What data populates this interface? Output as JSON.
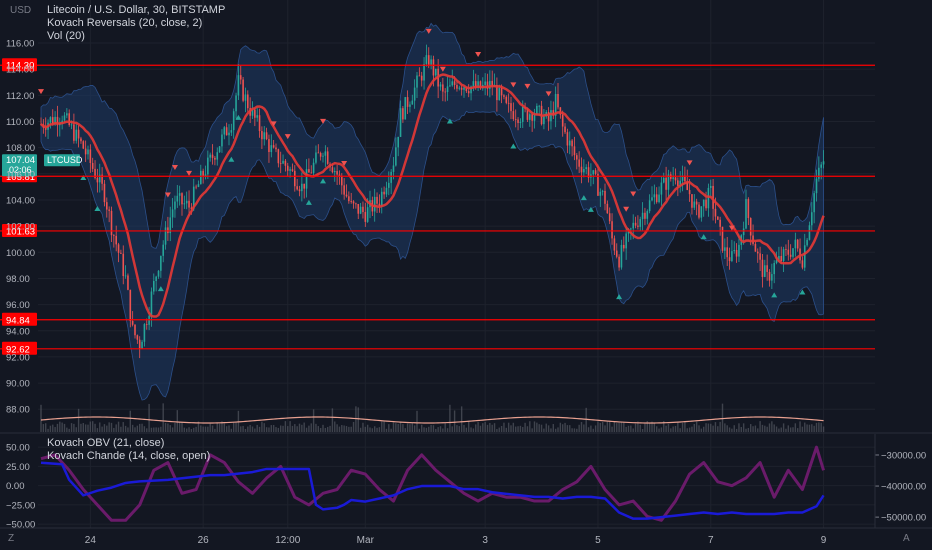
{
  "currency_label": "USD",
  "legend_main": {
    "line1": "Litecoin / U.S. Dollar, 30, BITSTAMP",
    "line2": "Kovach Reversals (20, close, 2)",
    "line3": "Vol (20)"
  },
  "legend_lower": {
    "line1": "Kovach OBV (21, close)",
    "line2": "Kovach Chande (14, close, open)"
  },
  "corner_left": "Z",
  "corner_right": "A",
  "colors": {
    "background": "#131722",
    "grid": "#1e222d",
    "hline": "#ff0000",
    "ma": "#e53935",
    "band": "#1e3a66",
    "up_candle": "#26a69a",
    "down_candle": "#ef5350",
    "obv": "#1a1ad6",
    "chande": "#6a1b6a",
    "volume_ma": "#e8a090",
    "price_badge": "#26a69a"
  },
  "chart_data": [
    {
      "type": "candlestick",
      "title": "Litecoin / U.S. Dollar, 30, BITSTAMP",
      "ylabel": "USD",
      "ylim": [
        86.8,
        117.6
      ],
      "y_ticks": [
        "116.00",
        "114.00",
        "112.00",
        "110.00",
        "108.00",
        "106.00",
        "104.00",
        "102.00",
        "100.00",
        "98.00",
        "96.00",
        "94.00",
        "92.00",
        "90.00",
        "88.00"
      ],
      "x_ticks": [
        "24",
        "26",
        "12:00",
        "Mar",
        "3",
        "5",
        "7",
        "9"
      ],
      "horizontal_lines": [
        {
          "value": 114.3,
          "label": "114.30"
        },
        {
          "value": 105.81,
          "label": "105.81"
        },
        {
          "value": 101.63,
          "label": "101.63"
        },
        {
          "value": 94.84,
          "label": "94.84"
        },
        {
          "value": 92.62,
          "label": "92.62"
        }
      ],
      "price_badges": {
        "price": "107.04",
        "countdown": "02:06",
        "symbol": "LTCUSD"
      },
      "close_path": [
        [
          0,
          109.8
        ],
        [
          3,
          110.5
        ],
        [
          6,
          108.0
        ],
        [
          9,
          104.5
        ],
        [
          10,
          102.0
        ],
        [
          12,
          98.0
        ],
        [
          13,
          94.0
        ],
        [
          14,
          93.0
        ],
        [
          15,
          95.0
        ],
        [
          17,
          100.0
        ],
        [
          19,
          104.0
        ],
        [
          21,
          103.5
        ],
        [
          23,
          106.0
        ],
        [
          25,
          108.0
        ],
        [
          27,
          110.0
        ],
        [
          28,
          113.0
        ],
        [
          30,
          110.5
        ],
        [
          33,
          107.5
        ],
        [
          35,
          106.5
        ],
        [
          37,
          105.0
        ],
        [
          39,
          107.0
        ],
        [
          40,
          108.0
        ],
        [
          42,
          106.0
        ],
        [
          44,
          103.5
        ],
        [
          46,
          103.0
        ],
        [
          48,
          104.0
        ],
        [
          50,
          107.0
        ],
        [
          51,
          110.5
        ],
        [
          53,
          112.5
        ],
        [
          55,
          114.8
        ],
        [
          57,
          112.0
        ],
        [
          59,
          113.0
        ],
        [
          62,
          112.5
        ],
        [
          64,
          112.8
        ],
        [
          66,
          111.0
        ],
        [
          68,
          110.5
        ],
        [
          70,
          110.8
        ],
        [
          72,
          110.0
        ],
        [
          73,
          111.5
        ],
        [
          74,
          109.5
        ],
        [
          76,
          107.0
        ],
        [
          78,
          106.0
        ],
        [
          80,
          104.0
        ],
        [
          81,
          101.0
        ],
        [
          82,
          99.5
        ],
        [
          84,
          102.0
        ],
        [
          86,
          103.5
        ],
        [
          88,
          105.0
        ],
        [
          90,
          106.0
        ],
        [
          92,
          104.5
        ],
        [
          93,
          103.0
        ],
        [
          95,
          104.5
        ],
        [
          96,
          102.0
        ],
        [
          97,
          100.0
        ],
        [
          98,
          99.5
        ],
        [
          99,
          100.5
        ],
        [
          100,
          103.5
        ],
        [
          101,
          101.0
        ],
        [
          102,
          99.0
        ],
        [
          103,
          98.0
        ],
        [
          104,
          99.0
        ],
        [
          105,
          99.5
        ],
        [
          106,
          100.0
        ],
        [
          107,
          100.5
        ],
        [
          108,
          99.5
        ],
        [
          109,
          102.5
        ],
        [
          110,
          105.5
        ],
        [
          111,
          107.0
        ]
      ],
      "volume_ma_label": "Vol (20)"
    },
    {
      "type": "line",
      "title": "",
      "series": [
        {
          "name": "Kovach OBV (21, close)",
          "axis": "right",
          "x": [
            0,
            3,
            4,
            6,
            8,
            10,
            12,
            14,
            18,
            20,
            24,
            26,
            28,
            30,
            32,
            34,
            36,
            38,
            39,
            40,
            42,
            43,
            44,
            46,
            48,
            50,
            52,
            54,
            56,
            58,
            60,
            62,
            64,
            66,
            68,
            70,
            72,
            74,
            76,
            78,
            80,
            82,
            84,
            86,
            88,
            90,
            92,
            94,
            96,
            98,
            100,
            102,
            104,
            106,
            108,
            110,
            111
          ],
          "values": [
            -32500,
            -33000,
            -38000,
            -43000,
            -41500,
            -40500,
            -39000,
            -38500,
            -38000,
            -37500,
            -36500,
            -36500,
            -36000,
            -35500,
            -34500,
            -34500,
            -34500,
            -34500,
            -46000,
            -47500,
            -47000,
            -46000,
            -44500,
            -45000,
            -44000,
            -43000,
            -41000,
            -40000,
            -40000,
            -40000,
            -41000,
            -41000,
            -42000,
            -42500,
            -43000,
            -43500,
            -43500,
            -44000,
            -43500,
            -43500,
            -44000,
            -48500,
            -50500,
            -50500,
            -50000,
            -49500,
            -49000,
            -48500,
            -49000,
            -48500,
            -49000,
            -49000,
            -49000,
            -48500,
            -48500,
            -46500,
            -43000
          ]
        },
        {
          "name": "Kovach Chande (14, close, open)",
          "axis": "left",
          "x": [
            0,
            2,
            4,
            6,
            8,
            10,
            12,
            14,
            16,
            18,
            20,
            22,
            24,
            26,
            28,
            30,
            32,
            34,
            36,
            38,
            40,
            42,
            44,
            46,
            48,
            50,
            52,
            54,
            56,
            58,
            60,
            62,
            64,
            66,
            68,
            70,
            72,
            74,
            76,
            78,
            80,
            82,
            84,
            86,
            88,
            90,
            92,
            94,
            96,
            98,
            100,
            102,
            104,
            106,
            108,
            110,
            111
          ],
          "values": [
            35,
            40,
            20,
            -5,
            -25,
            -45,
            -45,
            -25,
            20,
            30,
            -10,
            -5,
            40,
            30,
            5,
            -10,
            10,
            25,
            -15,
            -25,
            -10,
            -5,
            20,
            15,
            -5,
            -20,
            20,
            40,
            20,
            5,
            -10,
            -20,
            -10,
            -15,
            -15,
            -20,
            -20,
            -5,
            5,
            25,
            -5,
            -25,
            -20,
            -40,
            -45,
            -20,
            15,
            30,
            5,
            0,
            10,
            30,
            -15,
            20,
            -5,
            50,
            20
          ]
        }
      ],
      "left_ylim": [
        -55,
        58
      ],
      "left_ticks": [
        "50.00",
        "25.00",
        "0.00",
        "−25.00",
        "−50.00"
      ],
      "right_ylim": [
        -53500,
        -25500
      ],
      "right_ticks": [
        "−30000.00",
        "−40000.00",
        "−50000.00"
      ]
    }
  ]
}
